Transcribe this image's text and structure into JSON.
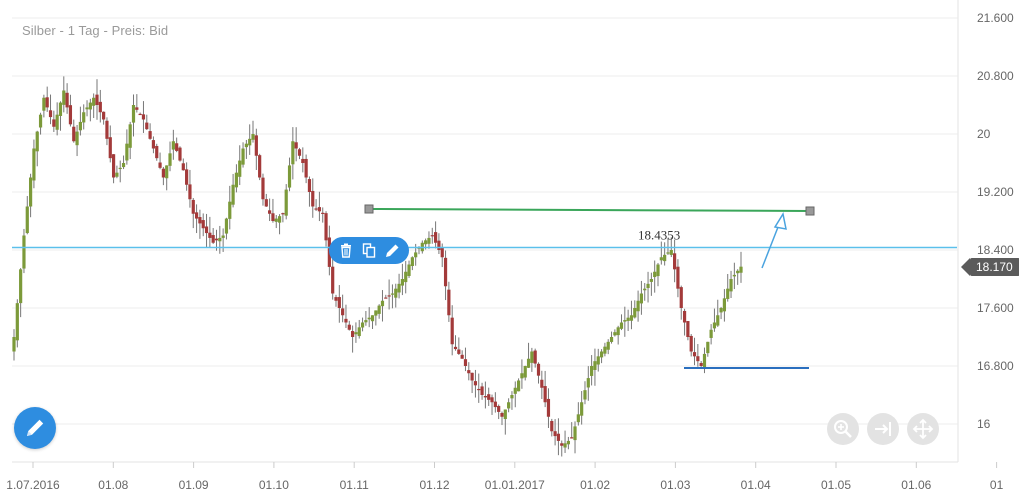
{
  "chart_data": {
    "type": "candlestick",
    "title": "Silber - 1 Tag - Preis: Bid",
    "y_ticks": [
      "21.600",
      "20.800",
      "20",
      "19.200",
      "18.400",
      "17.600",
      "16.800",
      "16"
    ],
    "y_tick_values": [
      21.6,
      20.8,
      20.0,
      19.2,
      18.4,
      17.6,
      16.8,
      16.0
    ],
    "ylim": [
      15.65,
      21.85
    ],
    "x_ticks": [
      "1.07.2016",
      "01.08",
      "01.09",
      "01.10",
      "01.11",
      "01.12",
      "01.01.2017",
      "01.02",
      "01.03",
      "01.04",
      "01.05",
      "01.06",
      "01"
    ],
    "current_price": "18.170",
    "grid": true,
    "series": [
      {
        "close": [
          17.2,
          18.6,
          19.8,
          20.5,
          20.1,
          20.6,
          19.9,
          20.3,
          20.5,
          20.2,
          19.4,
          19.6,
          20.4,
          20.2,
          19.8,
          19.4,
          19.9,
          19.5,
          18.9,
          18.7,
          18.5,
          18.6,
          19.3,
          19.8,
          20.0,
          19.1,
          18.8,
          18.9,
          19.9,
          19.6,
          19.0,
          18.9,
          17.8,
          17.5,
          17.2,
          17.4,
          17.5,
          17.7,
          17.8,
          18.0,
          18.3,
          18.5,
          18.6,
          18.3,
          17.1,
          16.9,
          16.6,
          16.4,
          16.3,
          16.1,
          16.4,
          16.7,
          17.0,
          16.5,
          15.9,
          15.7,
          15.8,
          16.3,
          16.8,
          17.0,
          17.2,
          17.4,
          17.5,
          17.8,
          18.0,
          18.3,
          18.4,
          17.6,
          17.0,
          16.8,
          17.3,
          17.6,
          18.0,
          18.17
        ]
      }
    ],
    "annotations": [
      {
        "type": "horizontal_line",
        "value": 18.4353,
        "label": "18.4353",
        "color": "#5bc0eb"
      },
      {
        "type": "trend_line",
        "color": "#3aa65a"
      },
      {
        "type": "horizontal_segment",
        "color": "#2a6fbf"
      },
      {
        "type": "arrow",
        "color": "#4aa3df"
      }
    ]
  },
  "toolbar": {
    "icons": [
      "trash-icon",
      "copy-icon",
      "pencil-icon"
    ]
  },
  "controls": [
    "zoom-icon",
    "fit-to-end-icon",
    "pan-icon"
  ],
  "colors": {
    "up": "#7c9a3a",
    "down": "#a33a3a",
    "accent": "#2e8de0",
    "level": "#5bc0eb",
    "trend": "#3aa65a"
  }
}
